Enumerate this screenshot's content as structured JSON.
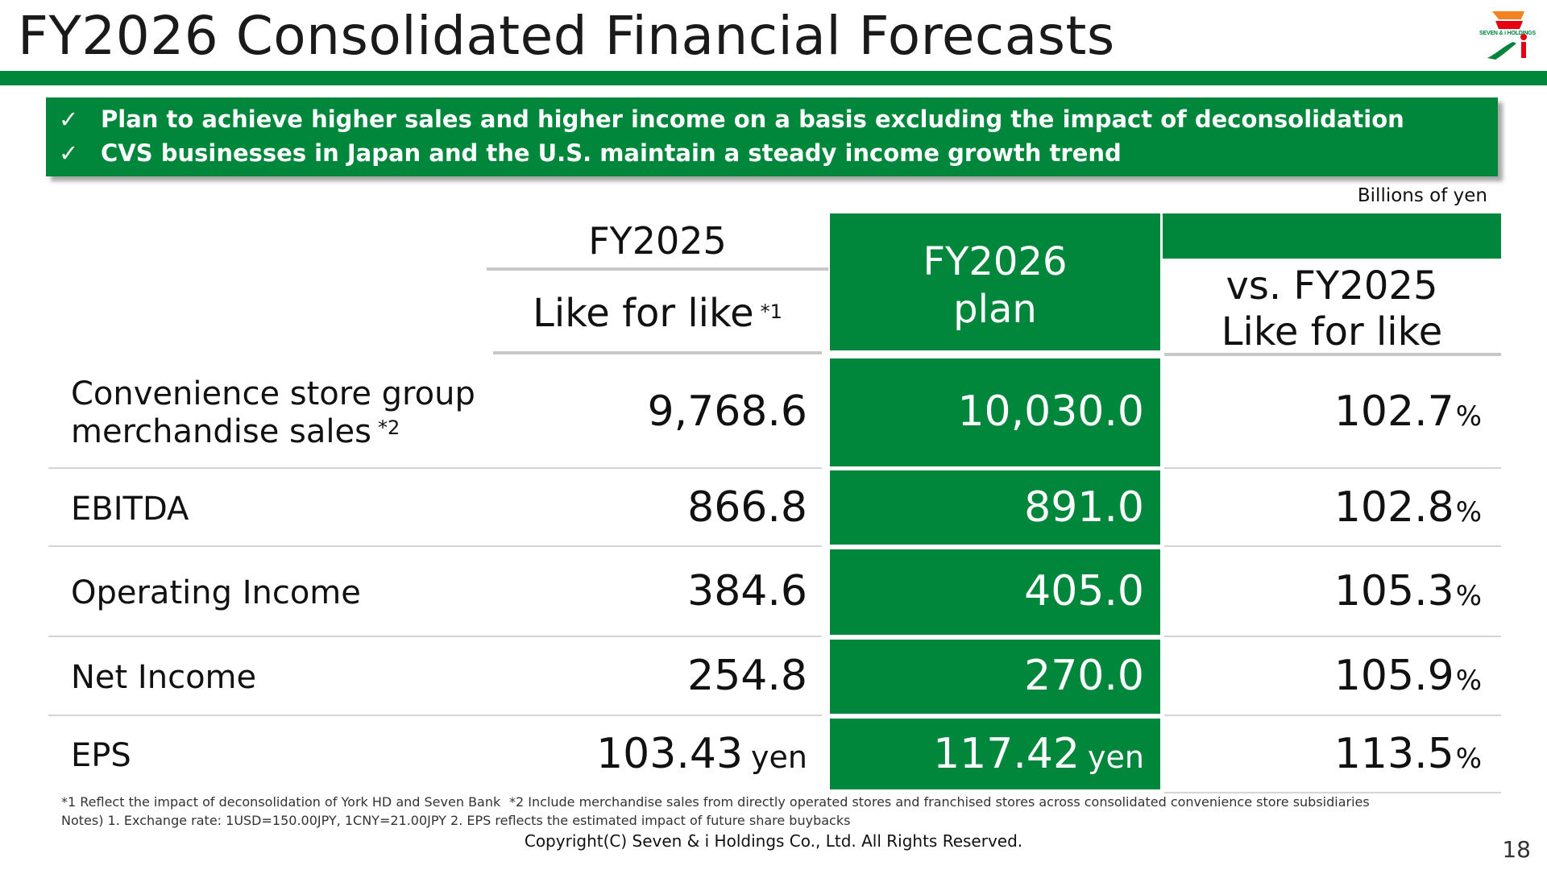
{
  "header": {
    "title": "FY2026 Consolidated Financial Forecasts",
    "logo_text": "SEVEN & i HOLDINGS"
  },
  "highlights": [
    "Plan to achieve higher sales and higher income on a basis excluding the impact of deconsolidation",
    "CVS businesses in Japan and the U.S. maintain a steady income growth trend"
  ],
  "check_glyph": "✓",
  "unit": "Billions of yen",
  "columns": {
    "fy2025": "FY2025",
    "like_for_like": "Like for like",
    "like_for_like_note": "*1",
    "fy2026_line1": "FY2026",
    "fy2026_line2": "plan",
    "vs_line1": "vs. FY2025",
    "vs_line2": "Like for like"
  },
  "rows": [
    {
      "label_line1": "Convenience store group",
      "label_line2": "merchandise sales",
      "note": "*2",
      "fy2025": "9,768.6",
      "fy2026": "10,030.0",
      "vs": "102.7",
      "vs_unit": "%"
    },
    {
      "label": "EBITDA",
      "fy2025": "866.8",
      "fy2026": "891.0",
      "vs": "102.8",
      "vs_unit": "%"
    },
    {
      "label": "Operating Income",
      "fy2025": "384.6",
      "fy2026": "405.0",
      "vs": "105.3",
      "vs_unit": "%"
    },
    {
      "label": "Net Income",
      "fy2025": "254.8",
      "fy2026": "270.0",
      "vs": "105.9",
      "vs_unit": "%"
    },
    {
      "label": "EPS",
      "fy2025": "103.43",
      "fy2025_unit": "yen",
      "fy2026": "117.42",
      "fy2026_unit": "yen",
      "vs": "113.5",
      "vs_unit": "%"
    }
  ],
  "footnotes": {
    "note1": "*1 Reflect the impact of deconsolidation of York HD and Seven Bank",
    "note2": "*2 Include merchandise sales from directly operated stores and franchised stores across consolidated convenience store subsidiaries",
    "notes": "Notes) 1. Exchange rate: 1USD=150.00JPY, 1CNY=21.00JPY   2. EPS reflects the estimated impact of future share buybacks"
  },
  "copyright": "Copyright(C) Seven & i Holdings Co., Ltd. All Rights Reserved.",
  "page_number": "18",
  "colors": {
    "brand_green": "#00873c",
    "rule_gray": "#c8c8c8"
  }
}
